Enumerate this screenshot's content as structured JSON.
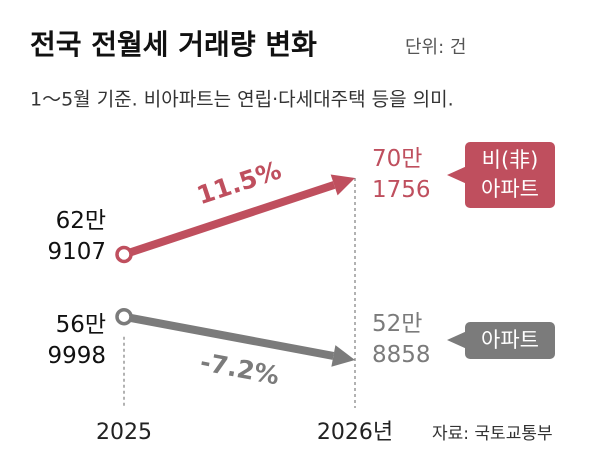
{
  "chart_data": {
    "type": "slope",
    "title": "전국 전월세 거래량 변화",
    "unit": "단위: 건",
    "subtitle": "1～5월 기준. 비아파트는 연립·다세대주택 등을 의미.",
    "source": "자료: 국토교통부",
    "categories": [
      "2025",
      "2026년"
    ],
    "series": [
      {
        "name": "비(非)\n아파트",
        "color": "#bf4f5e",
        "values": [
          629107,
          701756
        ],
        "value_labels": [
          "62만\n9107",
          "70만\n1756"
        ],
        "change": "11.5%"
      },
      {
        "name": "아파트",
        "color": "#7b7b7b",
        "values": [
          569998,
          528858
        ],
        "value_labels": [
          "56만\n9998",
          "52만\n8858"
        ],
        "change": "-7.2%"
      }
    ]
  }
}
